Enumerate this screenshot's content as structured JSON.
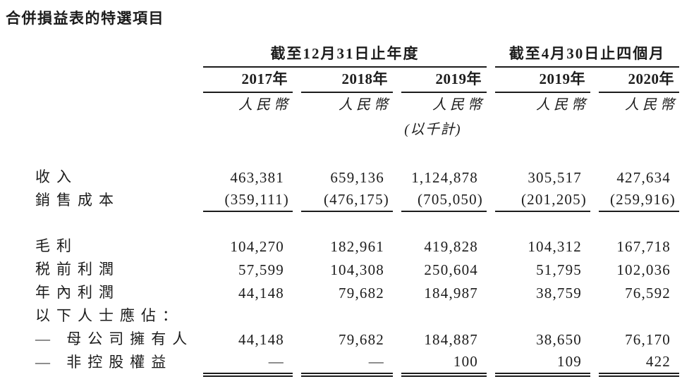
{
  "page": {
    "title": "合併損益表的特選項目"
  },
  "table": {
    "groups": [
      {
        "label": "截至12月31日止年度",
        "span": 3
      },
      {
        "label": "截至4月30日止四個月",
        "span": 2
      }
    ],
    "columns": [
      {
        "year": "2017年",
        "currency": "人民幣",
        "note": ""
      },
      {
        "year": "2018年",
        "currency": "人民幣",
        "note": ""
      },
      {
        "year": "2019年",
        "currency": "人民幣",
        "note": "(以千計)"
      },
      {
        "year": "2019年",
        "currency": "人民幣",
        "note": ""
      },
      {
        "year": "2020年",
        "currency": "人民幣",
        "note": ""
      }
    ],
    "rows": [
      {
        "label": "收入",
        "values": [
          "463,381",
          "659,136",
          "1,124,878",
          "305,517",
          "427,634"
        ]
      },
      {
        "label": "銷售成本",
        "values": [
          "(359,111)",
          "(476,175)",
          "(705,050)",
          "(201,205)",
          "(259,916)"
        ],
        "rule": "single",
        "spacer_after": true
      },
      {
        "label": "毛利",
        "values": [
          "104,270",
          "182,961",
          "419,828",
          "104,312",
          "167,718"
        ]
      },
      {
        "label": "税前利潤",
        "values": [
          "57,599",
          "104,308",
          "250,604",
          "51,795",
          "102,036"
        ]
      },
      {
        "label": "年內利潤",
        "values": [
          "44,148",
          "79,682",
          "184,987",
          "38,759",
          "76,592"
        ]
      },
      {
        "label": "以下人士應佔：",
        "values": [
          "",
          "",
          "",
          "",
          ""
        ]
      },
      {
        "label": "— 母公司擁有人",
        "values": [
          "44,148",
          "79,682",
          "184,887",
          "38,650",
          "76,170"
        ]
      },
      {
        "label": "— 非控股權益",
        "values": [
          "—",
          "—",
          "100",
          "109",
          "422"
        ],
        "rule": "single",
        "double_rule_after": true
      }
    ]
  }
}
